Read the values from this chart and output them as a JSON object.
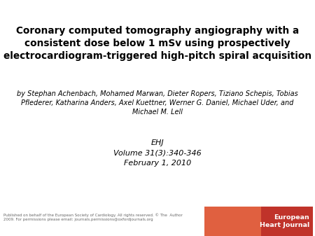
{
  "title_line1": "Coronary computed tomography angiography with a",
  "title_line2": "consistent dose below 1 mSv using prospectively",
  "title_line3": "electrocardiogram-triggered high-pitch spiral acquisition",
  "authors_line1": "by Stephan Achenbach, Mohamed Marwan, Dieter Ropers, Tiziano Schepis, Tobias",
  "authors_line2": "Pflederer, Katharina Anders, Axel Kuettner, Werner G. Daniel, Michael Uder, and",
  "authors_line3": "Michael M. Lell",
  "journal": "EHJ",
  "volume": "Volume 31(3):340-346",
  "date": "February 1, 2010",
  "footer_line1": "Published on behalf of the European Society of Cardiology. All rights reserved. © The  Author",
  "footer_line2": "2009. For permissions please email: journals.permissions@oxfordjournals.org",
  "bg_color": "#ffffff",
  "title_color": "#000000",
  "authors_color": "#000000",
  "journal_color": "#000000",
  "footer_color": "#666666",
  "logo_bg_left": "#e06040",
  "logo_bg_right": "#c0332a",
  "logo_text": "European\nHeart Journal",
  "logo_text_color": "#ffffff"
}
